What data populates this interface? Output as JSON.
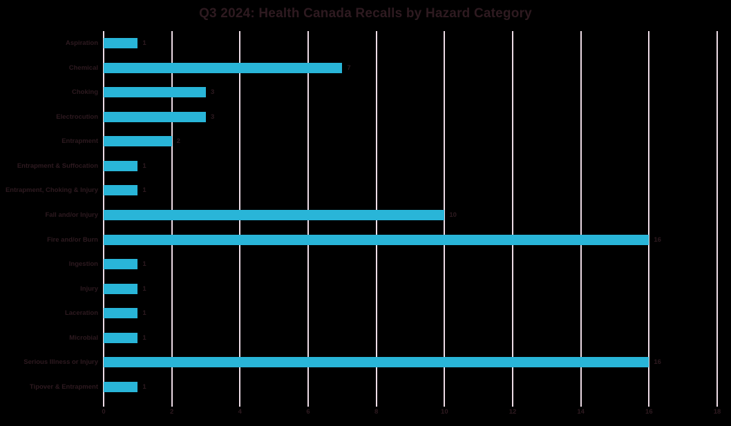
{
  "title": "Q3 2024: Health Canada Recalls by Hazard Category",
  "colors": {
    "background": "#000000",
    "bar": "#29b5d8",
    "gridline": "#eedde7",
    "text": "#2e1a20"
  },
  "chart_data": {
    "type": "bar",
    "orientation": "horizontal",
    "title": "Q3 2024: Health Canada Recalls by Hazard Category",
    "categories": [
      "Aspiration",
      "Chemical",
      "Choking",
      "Electrocution",
      "Entrapment",
      "Entrapment & Suffocation",
      "Entrapment, Choking & Injury",
      "Fall and/or Injury",
      "Fire and/or Burn",
      "Ingestion",
      "Injury",
      "Laceration",
      "Microbial",
      "Serious Illness or Injury",
      "Tipover & Entrapment"
    ],
    "values": [
      1,
      7,
      3,
      3,
      2,
      1,
      1,
      10,
      16,
      1,
      1,
      1,
      1,
      16,
      1
    ],
    "xlabel": "",
    "ylabel": "",
    "xlim": [
      0,
      18
    ],
    "xticks": [
      0,
      2,
      4,
      6,
      8,
      10,
      12,
      14,
      16,
      18
    ],
    "grid": true,
    "legend": false,
    "data_labels": true
  }
}
